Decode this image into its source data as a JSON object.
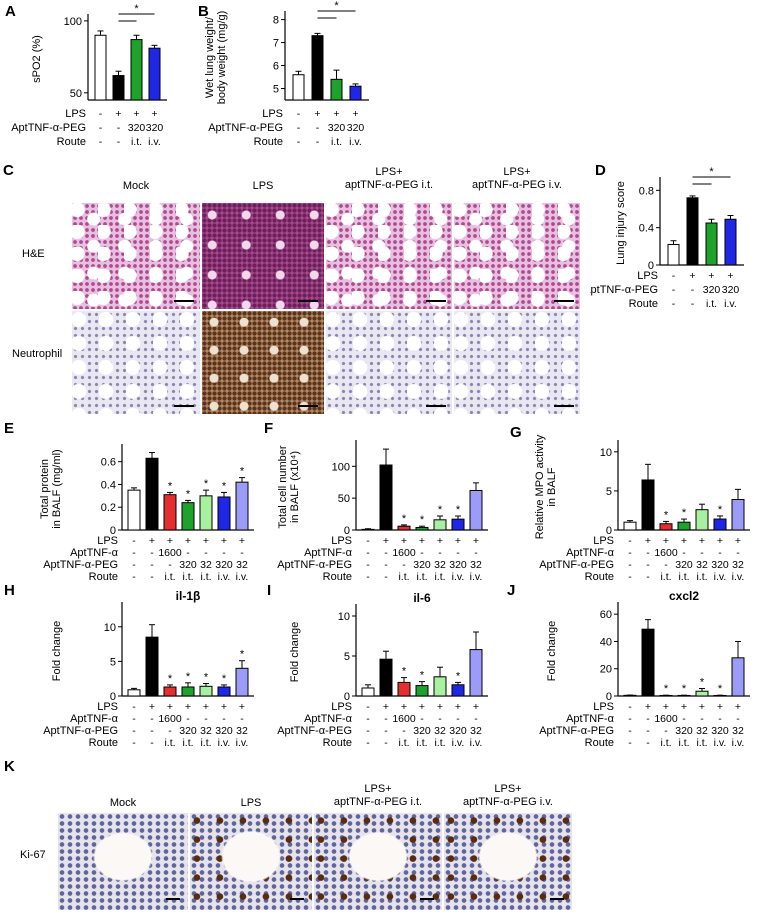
{
  "panel_letters": {
    "a": "A",
    "b": "B",
    "c": "C",
    "d": "D",
    "e": "E",
    "f": "F",
    "g": "G",
    "h": "H",
    "i": "I",
    "j": "J",
    "k": "K"
  },
  "sig": "*",
  "row_labels": {
    "lps": "LPS",
    "apt": "AptTNF-α",
    "aptpeg": "AptTNF-α-PEG",
    "route": "Route"
  },
  "chart_data": [
    {
      "id": "A",
      "type": "bar",
      "ylabel": "sPO2 (%)",
      "yticks": [
        50,
        100
      ],
      "ylim": [
        45,
        102
      ],
      "values": [
        90,
        62,
        87,
        81
      ],
      "errors": [
        3,
        3,
        3,
        2
      ],
      "colors": [
        "#ffffff",
        "#000000",
        "#1ea22b",
        "#1f27e6"
      ],
      "stars": [],
      "bracket": {
        "from": 1,
        "to": [
          2,
          3
        ]
      },
      "rows": [
        [
          "-",
          "+",
          "+",
          "+"
        ],
        [
          "-",
          "-",
          "320",
          "320"
        ],
        [
          "-",
          "-",
          "i.t.",
          "i.v."
        ]
      ]
    },
    {
      "id": "B",
      "type": "bar",
      "ylabel": "Wet lung weight/ body weight (mg/g)",
      "yticks": [
        5,
        6,
        7,
        8
      ],
      "ylim": [
        4.5,
        8.2
      ],
      "values": [
        5.6,
        7.3,
        5.4,
        5.1
      ],
      "errors": [
        0.15,
        0.1,
        0.4,
        0.1
      ],
      "colors": [
        "#ffffff",
        "#000000",
        "#1ea22b",
        "#1f27e6"
      ],
      "stars": [],
      "bracket": {
        "from": 1,
        "to": [
          2,
          3
        ]
      },
      "rows": [
        [
          "-",
          "+",
          "+",
          "+"
        ],
        [
          "-",
          "-",
          "320",
          "320"
        ],
        [
          "-",
          "-",
          "i.t.",
          "i.v."
        ]
      ]
    },
    {
      "id": "D",
      "type": "bar",
      "ylabel": "Lung injury score",
      "yticks": [
        0.0,
        0.4,
        0.8
      ],
      "ylim": [
        0,
        0.9
      ],
      "values": [
        0.22,
        0.72,
        0.45,
        0.49
      ],
      "errors": [
        0.04,
        0.02,
        0.04,
        0.04
      ],
      "colors": [
        "#ffffff",
        "#000000",
        "#1ea22b",
        "#1f27e6"
      ],
      "stars": [],
      "bracket": {
        "from": 1,
        "to": [
          2,
          3
        ]
      },
      "rows": [
        [
          "-",
          "+",
          "+",
          "+"
        ],
        [
          "-",
          "-",
          "320",
          "320"
        ],
        [
          "-",
          "-",
          "i.t.",
          "i.v."
        ]
      ]
    },
    {
      "id": "E",
      "type": "bar",
      "ylabel": "Total protein in BALF (mg/ml)",
      "yticks": [
        0.0,
        0.2,
        0.4,
        0.6
      ],
      "ylim": [
        0,
        0.72
      ],
      "values": [
        0.35,
        0.63,
        0.31,
        0.24,
        0.3,
        0.29,
        0.42
      ],
      "errors": [
        0.02,
        0.05,
        0.02,
        0.02,
        0.05,
        0.04,
        0.04
      ],
      "colors": [
        "#ffffff",
        "#000000",
        "#e52e2e",
        "#1ea22b",
        "#a6f0a0",
        "#1f27e6",
        "#9a9cf7"
      ],
      "stars": [
        2,
        3,
        4,
        5,
        6
      ],
      "rows": [
        [
          "-",
          "+",
          "+",
          "+",
          "+",
          "+",
          "+"
        ],
        [
          "-",
          "-",
          "1600",
          "-",
          "-",
          "-",
          "-"
        ],
        [
          "-",
          "-",
          "-",
          "320",
          "32",
          "320",
          "32"
        ],
        [
          "-",
          "-",
          "i.t.",
          "i.t.",
          "i.t.",
          "i.v.",
          "i.v."
        ]
      ]
    },
    {
      "id": "F",
      "type": "bar",
      "ylabel": "Total cell number in BALF (x10⁴)",
      "yticks": [
        0,
        50,
        100
      ],
      "ylim": [
        0,
        135
      ],
      "values": [
        1,
        102,
        6,
        4,
        16,
        17,
        62
      ],
      "errors": [
        1,
        25,
        2,
        2,
        6,
        5,
        12
      ],
      "colors": [
        "#ffffff",
        "#000000",
        "#e52e2e",
        "#1ea22b",
        "#a6f0a0",
        "#1f27e6",
        "#9a9cf7"
      ],
      "stars": [
        2,
        3,
        4,
        5
      ],
      "rows": [
        [
          "-",
          "+",
          "+",
          "+",
          "+",
          "+",
          "+"
        ],
        [
          "-",
          "-",
          "1600",
          "-",
          "-",
          "-",
          "-"
        ],
        [
          "-",
          "-",
          "-",
          "320",
          "32",
          "320",
          "32"
        ],
        [
          "-",
          "-",
          "i.t.",
          "i.t.",
          "i.t.",
          "i.v.",
          "i.v."
        ]
      ]
    },
    {
      "id": "G",
      "type": "bar",
      "ylabel": "Relative MPO activity in BALF",
      "yticks": [
        0,
        5,
        10
      ],
      "ylim": [
        0,
        11
      ],
      "values": [
        1.0,
        6.4,
        0.8,
        1.0,
        2.6,
        1.4,
        3.9
      ],
      "errors": [
        0.2,
        2,
        0.3,
        0.4,
        0.7,
        0.4,
        1.3
      ],
      "colors": [
        "#ffffff",
        "#000000",
        "#e52e2e",
        "#1ea22b",
        "#a6f0a0",
        "#1f27e6",
        "#9a9cf7"
      ],
      "stars": [
        2,
        3,
        5
      ],
      "rows": [
        [
          "-",
          "+",
          "+",
          "+",
          "+",
          "+",
          "+"
        ],
        [
          "-",
          "-",
          "1600",
          "-",
          "-",
          "-",
          "-"
        ],
        [
          "-",
          "-",
          "-",
          "320",
          "32",
          "320",
          "32"
        ],
        [
          "-",
          "-",
          "i.t.",
          "i.t.",
          "i.t.",
          "i.v.",
          "i.v."
        ]
      ]
    },
    {
      "id": "H",
      "type": "bar",
      "title": "il-1β",
      "ylabel": "Fold change",
      "yticks": [
        0,
        5,
        10
      ],
      "ylim": [
        0,
        13
      ],
      "values": [
        0.9,
        8.5,
        1.3,
        1.3,
        1.4,
        1.3,
        4.0
      ],
      "errors": [
        0.2,
        1.8,
        0.3,
        0.6,
        0.4,
        0.3,
        1.1
      ],
      "colors": [
        "#ffffff",
        "#000000",
        "#e52e2e",
        "#1ea22b",
        "#a6f0a0",
        "#1f27e6",
        "#9a9cf7"
      ],
      "stars": [
        2,
        3,
        4,
        5,
        6
      ],
      "rows": [
        [
          "-",
          "+",
          "+",
          "+",
          "+",
          "+",
          "+"
        ],
        [
          "-",
          "-",
          "1600",
          "-",
          "-",
          "-",
          "-"
        ],
        [
          "-",
          "-",
          "-",
          "320",
          "32",
          "320",
          "32"
        ],
        [
          "-",
          "-",
          "i.t.",
          "i.t.",
          "i.t.",
          "i.v.",
          "i.v."
        ]
      ]
    },
    {
      "id": "I",
      "type": "bar",
      "title": "il-6",
      "ylabel": "Fold change",
      "yticks": [
        0,
        5,
        10
      ],
      "ylim": [
        0,
        11
      ],
      "values": [
        1.0,
        4.6,
        1.7,
        1.3,
        2.4,
        1.4,
        5.8
      ],
      "errors": [
        0.4,
        1.0,
        0.6,
        0.5,
        1.2,
        0.3,
        2.2
      ],
      "colors": [
        "#ffffff",
        "#000000",
        "#e52e2e",
        "#1ea22b",
        "#a6f0a0",
        "#1f27e6",
        "#9a9cf7"
      ],
      "stars": [
        2,
        3,
        5
      ],
      "rows": [
        [
          "-",
          "+",
          "+",
          "+",
          "+",
          "+",
          "+"
        ],
        [
          "-",
          "-",
          "1600",
          "-",
          "-",
          "-",
          "-"
        ],
        [
          "-",
          "-",
          "-",
          "320",
          "32",
          "320",
          "32"
        ],
        [
          "-",
          "-",
          "i.t.",
          "i.t.",
          "i.t.",
          "i.v.",
          "i.v."
        ]
      ]
    },
    {
      "id": "J",
      "type": "bar",
      "title": "cxcl2",
      "ylabel": "Fold change",
      "yticks": [
        0,
        20,
        40,
        60
      ],
      "ylim": [
        0,
        66
      ],
      "values": [
        0.5,
        49,
        0.4,
        0.4,
        3.5,
        0.4,
        28
      ],
      "errors": [
        0.2,
        7,
        0.2,
        0.2,
        2,
        0.2,
        12
      ],
      "colors": [
        "#ffffff",
        "#000000",
        "#e52e2e",
        "#1ea22b",
        "#a6f0a0",
        "#1f27e6",
        "#9a9cf7"
      ],
      "stars": [
        2,
        3,
        4,
        5
      ],
      "rows": [
        [
          "-",
          "+",
          "+",
          "+",
          "+",
          "+",
          "+"
        ],
        [
          "-",
          "-",
          "1600",
          "-",
          "-",
          "-",
          "-"
        ],
        [
          "-",
          "-",
          "-",
          "320",
          "32",
          "320",
          "32"
        ],
        [
          "-",
          "-",
          "i.t.",
          "i.t.",
          "i.t.",
          "i.v.",
          "i.v."
        ]
      ]
    }
  ],
  "panel_c": {
    "cols": [
      "Mock",
      "LPS",
      "LPS+\naptTNF-α-PEG i.t.",
      "LPS+\naptTNF-α-PEG i.v."
    ],
    "row_he": "H&E",
    "row_neu": "Neutrophil"
  },
  "panel_k": {
    "cols": [
      "Mock",
      "LPS",
      "LPS+\naptTNF-α-PEG i.t.",
      "LPS+\naptTNF-α-PEG i.v."
    ],
    "row": "Ki-67"
  }
}
